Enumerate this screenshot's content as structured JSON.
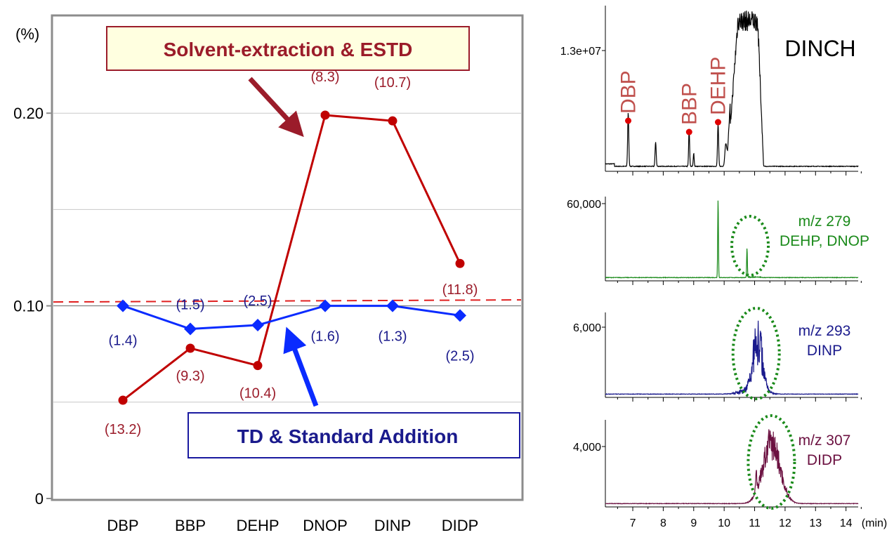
{
  "colors": {
    "solvent": "#c00000",
    "td": "#0a2bff",
    "td_text": "#1a1a8c",
    "estd_label": "#9b1c2a",
    "ref_line": "#e02020",
    "chrom_black": "#000000",
    "chrom_green": "#1a8a1a",
    "chrom_blue": "#1a1a8c",
    "chrom_maroon": "#6b1040",
    "ellipse": "#1a8a1a",
    "callout_fill": "#ffffe0",
    "callout_border": "#1a1aa0"
  },
  "chart_data": [
    {
      "type": "line",
      "title": "",
      "xlabel": "",
      "ylabel": "(%)",
      "ylim": [
        0,
        0.25
      ],
      "yticks": [
        "0",
        "0.10",
        "0.20"
      ],
      "ytick_values": [
        0,
        0.1,
        0.2
      ],
      "grid_values": [
        0.05,
        0.1,
        0.15,
        0.2
      ],
      "categories": [
        "DBP",
        "BBP",
        "DEHP",
        "DNOP",
        "DINP",
        "DIDP"
      ],
      "reference_line": 0.102,
      "series": [
        {
          "key": "solvent",
          "values": [
            0.051,
            0.078,
            0.069,
            0.199,
            0.196,
            0.122
          ],
          "labels": [
            "(13.2)",
            "(9.3)",
            "(10.4)",
            "(8.3)",
            "(10.7)",
            "(11.8)"
          ]
        },
        {
          "key": "td",
          "values": [
            0.1,
            0.088,
            0.09,
            0.1,
            0.1,
            0.095
          ],
          "labels": [
            "(1.4)",
            "(1.5)",
            "(2.5)",
            "(1.6)",
            "(1.3)",
            "(2.5)"
          ]
        }
      ],
      "annotations": {
        "solvent_callout": "Solvent-extraction & ESTD",
        "td_callout": "TD & Standard Addition"
      }
    },
    {
      "type": "line",
      "title": "",
      "xlabel": "(min)",
      "xlim": [
        6.1,
        14.4
      ],
      "xticks": [
        7,
        8,
        9,
        10,
        11,
        12,
        13,
        14
      ],
      "panels": [
        {
          "key": "tic",
          "ytick": "1.3e+07",
          "label_lines": [
            "DINCH"
          ],
          "peak_labels": [
            {
              "text": "DBP",
              "x": 6.85
            },
            {
              "text": "BBP",
              "x": 8.85
            },
            {
              "text": "DEHP",
              "x": 9.8
            }
          ]
        },
        {
          "key": "mz279",
          "ytick": "60,000",
          "label_lines": [
            "m/z 279",
            "DEHP, DNOP"
          ],
          "ellipse_center_x": 10.85
        },
        {
          "key": "mz293",
          "ytick": "6,000",
          "label_lines": [
            "m/z 293",
            "DINP"
          ],
          "ellipse_center_x": 11.05
        },
        {
          "key": "mz307",
          "ytick": "4,000",
          "label_lines": [
            "m/z 307",
            "DIDP"
          ],
          "ellipse_center_x": 11.55
        }
      ]
    }
  ]
}
